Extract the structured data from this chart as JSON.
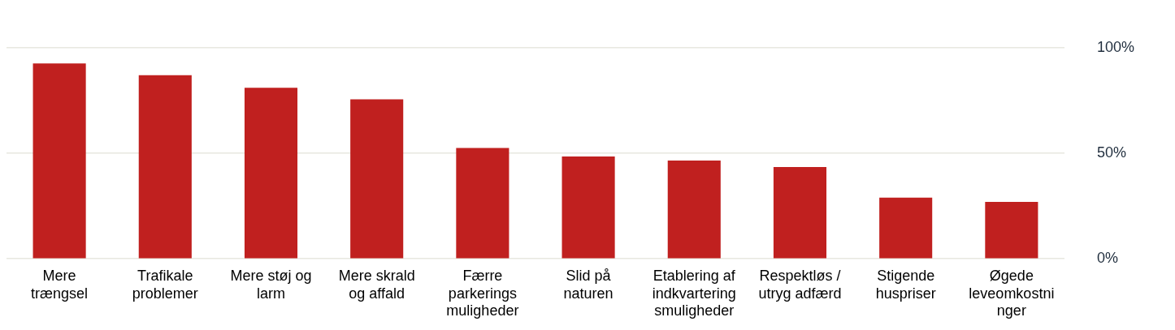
{
  "chart_data": {
    "type": "bar",
    "categories": [
      "Mere trængsel",
      "Trafikale problemer",
      "Mere støj og larm",
      "Mere skrald og affald",
      "Færre parkerings muligheder",
      "Slid på naturen",
      "Etablering af indkvarteringsmuligheder",
      "Respektløs / utryg adfærd",
      "Stigende huspriser",
      "Øgede leveomkostninger"
    ],
    "values": [
      92.5,
      87,
      81,
      75.5,
      52.5,
      48.5,
      46.5,
      43.5,
      29,
      27
    ],
    "color": "#c0201f",
    "ylim": [
      0,
      100
    ],
    "yticks": [
      {
        "value": 0,
        "label": "0%"
      },
      {
        "value": 50,
        "label": "50%"
      },
      {
        "value": 100,
        "label": "100%"
      }
    ],
    "grid": "y"
  }
}
